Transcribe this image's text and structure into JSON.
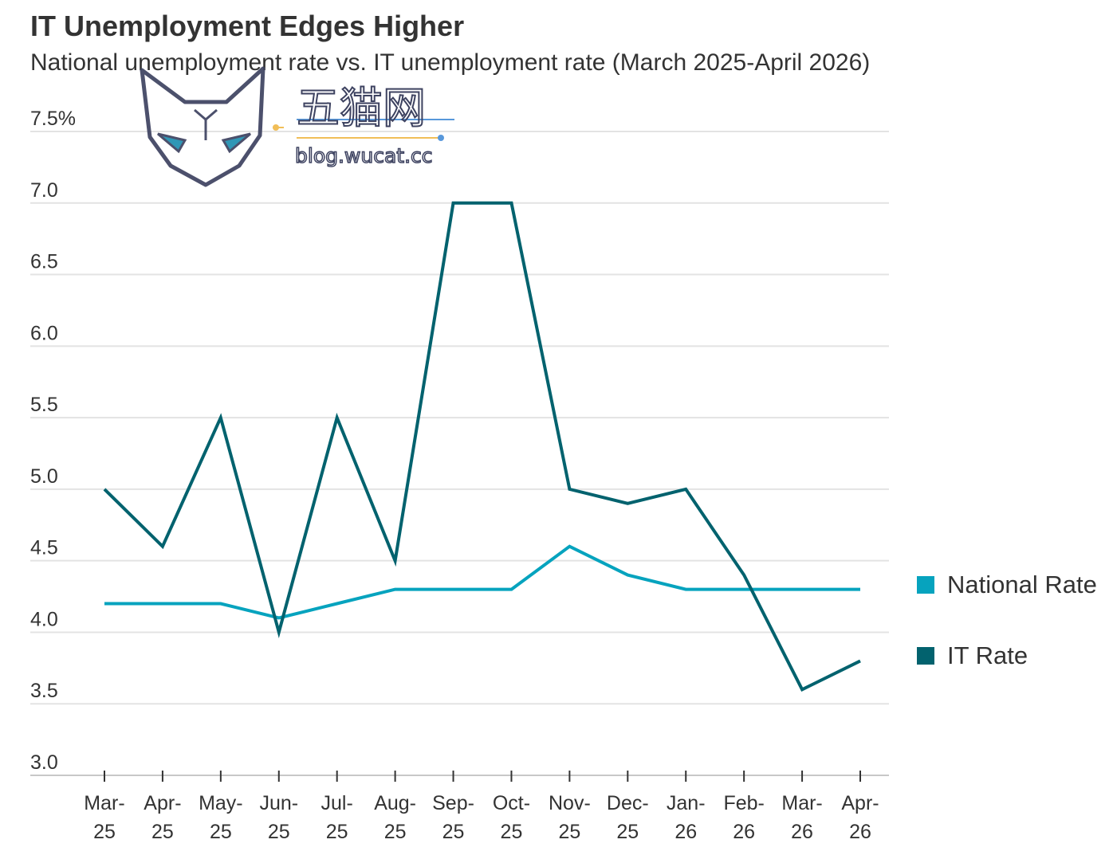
{
  "title": "IT Unemployment Edges Higher",
  "subtitle": "National unemployment rate vs. IT unemployment rate (March 2025-April 2026)",
  "watermark": {
    "name": "五猫网",
    "url": "blog.wucat.cc"
  },
  "chart_data": {
    "type": "line",
    "x": [
      "Mar-25",
      "Apr-25",
      "May-25",
      "Jun-25",
      "Jul-25",
      "Aug-25",
      "Sep-25",
      "Oct-25",
      "Nov-25",
      "Dec-25",
      "Jan-26",
      "Feb-26",
      "Mar-26",
      "Apr-26"
    ],
    "x_tick_lines": [
      [
        "Mar-",
        "25"
      ],
      [
        "Apr-",
        "25"
      ],
      [
        "May-",
        "25"
      ],
      [
        "Jun-",
        "25"
      ],
      [
        "Jul-",
        "25"
      ],
      [
        "Aug-",
        "25"
      ],
      [
        "Sep-",
        "25"
      ],
      [
        "Oct-",
        "25"
      ],
      [
        "Nov-",
        "25"
      ],
      [
        "Dec-",
        "25"
      ],
      [
        "Jan-",
        "26"
      ],
      [
        "Feb-",
        "26"
      ],
      [
        "Mar-",
        "26"
      ],
      [
        "Apr-",
        "26"
      ]
    ],
    "y_ticks": [
      "3.0",
      "3.5",
      "4.0",
      "4.5",
      "5.0",
      "5.5",
      "6.0",
      "6.5",
      "7.0",
      "7.5%"
    ],
    "y_tick_values": [
      3.0,
      3.5,
      4.0,
      4.5,
      5.0,
      5.5,
      6.0,
      6.5,
      7.0,
      7.5
    ],
    "ylim": [
      3.0,
      7.5
    ],
    "grid": true,
    "legend_position": "right",
    "series": [
      {
        "name": "National Rate",
        "color": "#06A3BE",
        "values": [
          4.2,
          4.2,
          4.2,
          4.1,
          4.2,
          4.3,
          4.3,
          4.3,
          4.6,
          4.4,
          4.3,
          4.3,
          4.3,
          4.3
        ]
      },
      {
        "name": "IT Rate",
        "color": "#02626E",
        "values": [
          5.0,
          4.6,
          5.5,
          4.0,
          5.5,
          4.5,
          7.0,
          7.0,
          5.0,
          4.9,
          5.0,
          4.4,
          3.6,
          3.8
        ]
      }
    ]
  }
}
